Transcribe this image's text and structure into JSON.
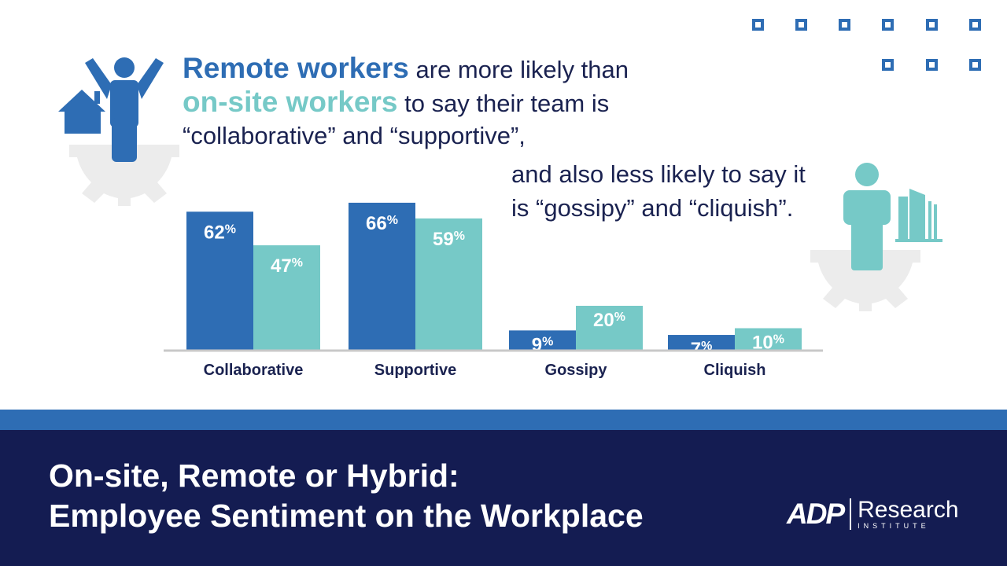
{
  "headline": {
    "remote_label": "Remote workers",
    "line1_rest": " are more likely than",
    "onsite_label": "on-site workers",
    "line2_rest": " to say their team is",
    "line3": "“collaborative” and “supportive”,"
  },
  "subline": {
    "line1": "and also less likely to say it",
    "line2": "is “gossipy” and “cliquish”."
  },
  "footer": {
    "title_line1": "On-site, Remote or Hybrid:",
    "title_line2": "Employee Sentiment on the Workplace",
    "logo_brand": "ADP",
    "logo_word": "Research",
    "logo_sub": "INSTITUTE"
  },
  "colors": {
    "remote": "#2e6db4",
    "onsite": "#76c9c7",
    "navy": "#141c52",
    "text": "#1a2250",
    "gear": "#ececec"
  },
  "icons": [
    "remote-worker-icon",
    "house-icon",
    "gear-icon",
    "onsite-worker-icon",
    "office-building-icon",
    "dots-pattern-icon"
  ],
  "chart_data": {
    "type": "bar",
    "categories": [
      "Collaborative",
      "Supportive",
      "Gossipy",
      "Cliquish"
    ],
    "series": [
      {
        "name": "Remote workers",
        "values": [
          62,
          66,
          9,
          7
        ],
        "color": "#2e6db4"
      },
      {
        "name": "on-site workers",
        "values": [
          47,
          59,
          20,
          10
        ],
        "color": "#76c9c7"
      }
    ],
    "value_suffix": "%",
    "ylim": [
      0,
      70
    ],
    "grid": false,
    "legend": "none"
  }
}
